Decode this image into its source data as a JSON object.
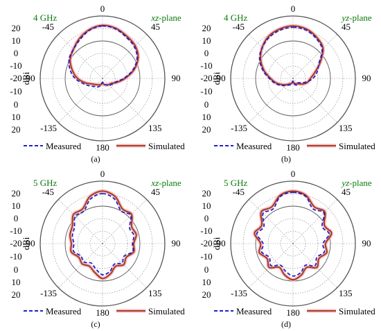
{
  "colors": {
    "measured": "#1f1fcf",
    "simulated": "#a0321e",
    "simulated_halo": "#f0a8a8",
    "label_green": "#0a7a0a",
    "grid_solid": "#555555",
    "grid_dotted": "#8a8a8a"
  },
  "chart_data": [
    {
      "type": "polar-line",
      "panel_label": "(a)",
      "freq_label": "4 GHz",
      "plane_prefix": "xz",
      "plane_suffix": "-plane",
      "angle_labels": [
        "0",
        "45",
        "90",
        "135",
        "180",
        "-135",
        "-90",
        "-45"
      ],
      "radial_unit": "dBi",
      "radial_ticks": [
        "20",
        "10",
        "0",
        "-10",
        "-20",
        "-10",
        "0",
        "10",
        "20"
      ],
      "rlim": [
        -30,
        20
      ],
      "legend": [
        "Measured",
        "Simulated"
      ],
      "angles": [
        0,
        15,
        30,
        45,
        60,
        75,
        90,
        105,
        120,
        135,
        150,
        165,
        180,
        195,
        210,
        225,
        240,
        255,
        270,
        285,
        300,
        315,
        330,
        345
      ],
      "series": [
        {
          "name": "Simulated",
          "values": [
            12.5,
            11.5,
            9,
            7,
            3,
            -4,
            -12,
            -18,
            -22,
            -23,
            -24,
            -25,
            -26,
            -25,
            -24,
            -23,
            -21,
            -16,
            -10,
            -5,
            0,
            3,
            7,
            10.5
          ]
        },
        {
          "name": "Measured",
          "values": [
            12,
            11,
            8,
            6,
            2,
            -5,
            -13,
            -19,
            -21,
            -22,
            -24,
            -25,
            -27,
            -24,
            -22,
            -21,
            -18,
            -14,
            -8,
            -3,
            1,
            3,
            6,
            10
          ]
        }
      ]
    },
    {
      "type": "polar-line",
      "panel_label": "(b)",
      "freq_label": "4 GHz",
      "plane_prefix": "yz",
      "plane_suffix": "-plane",
      "angle_labels": [
        "0",
        "45",
        "90",
        "135",
        "180",
        "-135",
        "-90",
        "-45"
      ],
      "radial_unit": "dBi",
      "radial_ticks": [
        "20",
        "10",
        "0",
        "-10",
        "-20",
        "-10",
        "0",
        "10",
        "20"
      ],
      "rlim": [
        -30,
        20
      ],
      "legend": [
        "Measured",
        "Simulated"
      ],
      "angles": [
        0,
        15,
        30,
        45,
        60,
        75,
        90,
        105,
        120,
        135,
        150,
        165,
        180,
        195,
        210,
        225,
        240,
        255,
        270,
        285,
        300,
        315,
        330,
        345
      ],
      "series": [
        {
          "name": "Simulated",
          "values": [
            12,
            11,
            8,
            4,
            -5,
            -12,
            -16,
            -18,
            -21,
            -24,
            -25,
            -26,
            -27,
            -26,
            -25,
            -23,
            -20,
            -16,
            -12,
            -6,
            0,
            5,
            9,
            11
          ]
        },
        {
          "name": "Measured",
          "values": [
            11,
            10,
            7,
            3,
            -6,
            -10,
            -14,
            -19,
            -23,
            -25,
            -24,
            -25,
            -28,
            -25,
            -24,
            -22,
            -19,
            -15,
            -11,
            -5,
            1,
            5,
            8,
            10
          ]
        }
      ]
    },
    {
      "type": "polar-line",
      "panel_label": "(c)",
      "freq_label": "5 GHz",
      "plane_prefix": "xz",
      "plane_suffix": "-plane",
      "angle_labels": [
        "0",
        "45",
        "90",
        "135",
        "180",
        "-135",
        "-90",
        "-45"
      ],
      "radial_unit": "dBi",
      "radial_ticks": [
        "20",
        "10",
        "0",
        "-10",
        "-20",
        "-10",
        "0",
        "10",
        "20"
      ],
      "rlim": [
        -30,
        20
      ],
      "legend": [
        "Measured",
        "Simulated"
      ],
      "angles": [
        0,
        15,
        30,
        45,
        60,
        75,
        90,
        105,
        120,
        135,
        150,
        165,
        180,
        195,
        210,
        225,
        240,
        255,
        270,
        285,
        300,
        315,
        330,
        345
      ],
      "series": [
        {
          "name": "Simulated",
          "values": [
            12,
            9,
            2,
            3,
            -3,
            -2,
            -5,
            -4,
            -8,
            -6,
            -9,
            -5,
            -2,
            -6,
            -9,
            -7,
            -8,
            -4,
            -5,
            -3,
            -2,
            3,
            2,
            9
          ]
        },
        {
          "name": "Measured",
          "values": [
            10,
            7,
            0,
            2,
            -5,
            -4,
            -6,
            -5,
            -10,
            -8,
            -11,
            -7,
            -5,
            -9,
            -12,
            -9,
            -10,
            -6,
            -7,
            -5,
            -4,
            1,
            0,
            7
          ]
        }
      ]
    },
    {
      "type": "polar-line",
      "panel_label": "(d)",
      "freq_label": "5 GHz",
      "plane_prefix": "yz",
      "plane_suffix": "-plane",
      "angle_labels": [
        "0",
        "45",
        "90",
        "135",
        "180",
        "-135",
        "-90",
        "-45"
      ],
      "radial_unit": "dBi",
      "radial_ticks": [
        "20",
        "10",
        "0",
        "-10",
        "-20",
        "-10",
        "0",
        "10",
        "20"
      ],
      "rlim": [
        -30,
        20
      ],
      "legend": [
        "Measured",
        "Simulated"
      ],
      "angles": [
        0,
        15,
        30,
        45,
        60,
        75,
        90,
        105,
        120,
        135,
        150,
        165,
        180,
        195,
        210,
        225,
        240,
        255,
        270,
        285,
        300,
        315,
        330,
        345
      ],
      "series": [
        {
          "name": "Simulated",
          "values": [
            12,
            10,
            4,
            6,
            -1,
            2,
            -4,
            -2,
            -6,
            -3,
            -8,
            -4,
            -1,
            -4,
            -8,
            -3,
            -6,
            -2,
            -4,
            2,
            -1,
            6,
            4,
            10
          ]
        },
        {
          "name": "Measured",
          "values": [
            11,
            9,
            2,
            5,
            -3,
            0,
            -6,
            -4,
            -8,
            -5,
            -10,
            -6,
            -4,
            -7,
            -10,
            -5,
            -8,
            -4,
            -6,
            0,
            -3,
            4,
            2,
            9
          ]
        }
      ]
    }
  ]
}
